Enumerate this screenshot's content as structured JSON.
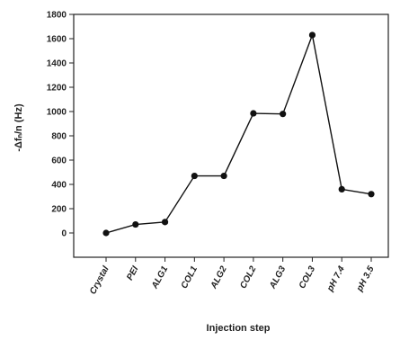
{
  "chart_data": {
    "type": "line",
    "xlabel": "Injection step",
    "ylabel": "-Δfₙ/n (Hz)",
    "categories": [
      "Crystal",
      "PEI",
      "ALG1",
      "COL1",
      "ALG2",
      "COL2",
      "ALG3",
      "COL3",
      "pH 7.4",
      "pH 3.5"
    ],
    "values": [
      0,
      70,
      90,
      470,
      470,
      985,
      980,
      1630,
      360,
      320
    ],
    "ylim": [
      -200,
      1800
    ],
    "yticks": [
      0,
      200,
      400,
      600,
      800,
      1000,
      1200,
      1400,
      1600,
      1800
    ],
    "series_color": "#111111",
    "grid": false
  }
}
